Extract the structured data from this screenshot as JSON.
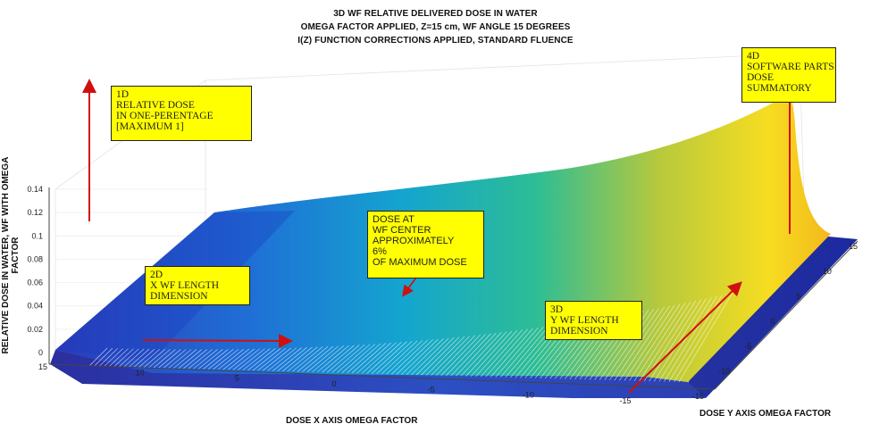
{
  "chart_data": {
    "type": "surface",
    "title": [
      "3D WF RELATIVE DELIVERED DOSE IN WATER",
      "OMEGA FACTOR APPLIED, Z=15 cm, WF ANGLE 15 DEGREES",
      "I(Z) FUNCTION CORRECTIONS APPLIED, STANDARD FLUENCE"
    ],
    "zlabel": "RELATIVE DOSE IN WATER, WF WITH OMEGA FACTOR",
    "xlabel": "DOSE X AXIS OMEGA FACTOR",
    "ylabel": "DOSE Y AXIS OMEGA FACTOR",
    "x_ticks": [
      "15",
      "10",
      "5",
      "0",
      "-5",
      "-10",
      "-15"
    ],
    "y_ticks": [
      "-15",
      "-10",
      "-5",
      "0",
      "5",
      "10",
      "15"
    ],
    "z_ticks": [
      "0",
      "0.02",
      "0.04",
      "0.06",
      "0.08",
      "0.1",
      "0.12",
      "0.14"
    ],
    "xlim": [
      -15,
      15
    ],
    "ylim": [
      -15,
      15
    ],
    "zlim": [
      0,
      0.14
    ],
    "grid": true,
    "colormap": "parula",
    "surface_profile": {
      "x": [
        15,
        10,
        5,
        0,
        -5,
        -10,
        -13,
        -14,
        -15
      ],
      "z_back_edge": [
        0.1,
        0.103,
        0.107,
        0.112,
        0.122,
        0.14,
        0.158,
        0.16,
        0.03
      ],
      "z_front_edge": [
        0.002,
        0.003,
        0.004,
        0.006,
        0.008,
        0.012,
        0.02,
        0.022,
        0.002
      ]
    }
  },
  "annotations": {
    "note_1d": "1D\nRELATIVE DOSE\nIN ONE-PERENTAGE\n[MAXIMUM 1]",
    "note_4d": "4D\nSOFTWARE PARTS\nDOSE\nSUMMATORY",
    "note_2d": "2D\nX WF LENGTH\nDIMENSION",
    "note_center": "DOSE AT\nWF CENTER\nAPPROXIMATELY\n6%\nOF MAXIMUM DOSE",
    "note_3d": "3D\nY WF LENGTH\nDIMENSION"
  },
  "colors": {
    "arrow": "#d01010",
    "note_bg": "#ffff00",
    "surface_low": "#2a2aa8",
    "surface_mid": "#13b3b8",
    "surface_high": "#f9e11f"
  }
}
